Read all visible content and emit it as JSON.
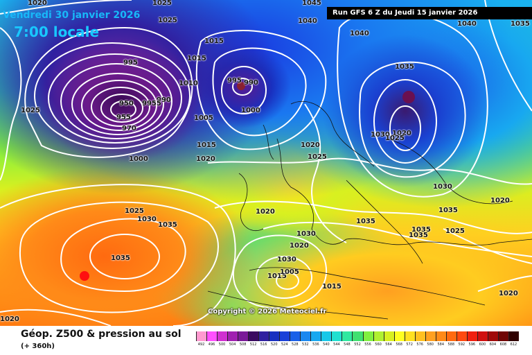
{
  "header": {
    "date_line": "Vendredi 30 janvier 2026",
    "time_line": "7:00 locale",
    "run_info": "Run GFS 6 Z du Jeudi 15 janvier 2026"
  },
  "copyright": "Copyright © 2026 Meteociel.fr",
  "footer": {
    "product_title": "Géop. Z500 & pression au sol",
    "lead_time": "(+ 360h)"
  },
  "isobar_labels": [
    {
      "id": "l1020a",
      "text": "1020"
    },
    {
      "id": "l1025a",
      "text": "1025"
    },
    {
      "id": "l1025b",
      "text": "1025"
    },
    {
      "id": "l1045",
      "text": "1045"
    },
    {
      "id": "l1040a",
      "text": "1040"
    },
    {
      "id": "l1040b",
      "text": "1040"
    },
    {
      "id": "l1040c",
      "text": "1040"
    },
    {
      "id": "l1035a",
      "text": "1035"
    },
    {
      "id": "l1015a",
      "text": "1015"
    },
    {
      "id": "l1015b",
      "text": "1015"
    },
    {
      "id": "l1010",
      "text": "1010"
    },
    {
      "id": "l995a",
      "text": "995"
    },
    {
      "id": "l995b",
      "text": "995"
    },
    {
      "id": "l990a",
      "text": "990"
    },
    {
      "id": "l990b",
      "text": "990"
    },
    {
      "id": "l950",
      "text": "950"
    },
    {
      "id": "l955",
      "text": "955"
    },
    {
      "id": "l970",
      "text": "970"
    },
    {
      "id": "l9955",
      "text": "9955"
    },
    {
      "id": "l1000a",
      "text": "1000"
    },
    {
      "id": "l1000b",
      "text": "1000"
    },
    {
      "id": "l1005a",
      "text": "1005"
    },
    {
      "id": "l1025c",
      "text": "1025"
    },
    {
      "id": "l1015c",
      "text": "1015"
    },
    {
      "id": "l1020b",
      "text": "1020"
    },
    {
      "id": "l1020c",
      "text": "1020"
    },
    {
      "id": "l1025d",
      "text": "1025"
    },
    {
      "id": "l1035b",
      "text": "1035"
    },
    {
      "id": "l1030a",
      "text": "1030"
    },
    {
      "id": "l1020d",
      "text": "1020"
    },
    {
      "id": "l1030b",
      "text": "1030"
    },
    {
      "id": "l1025e",
      "text": "1025"
    },
    {
      "id": "l1030c",
      "text": "1030"
    },
    {
      "id": "l1035c",
      "text": "1035"
    },
    {
      "id": "l1035d",
      "text": "1035"
    },
    {
      "id": "l1025f",
      "text": "1025"
    },
    {
      "id": "l1020e",
      "text": "1020"
    },
    {
      "id": "l1015d",
      "text": "1015"
    },
    {
      "id": "l1025g",
      "text": "1025"
    },
    {
      "id": "l1030d",
      "text": "1030"
    },
    {
      "id": "l1035e",
      "text": "1035"
    },
    {
      "id": "l1035f",
      "text": "1035"
    },
    {
      "id": "l1035g",
      "text": "1035"
    },
    {
      "id": "l1030e",
      "text": "1030"
    },
    {
      "id": "l1005b",
      "text": "1005"
    },
    {
      "id": "l1015e",
      "text": "1015"
    },
    {
      "id": "l1020f",
      "text": "1020"
    },
    {
      "id": "l1020g",
      "text": "1020"
    },
    {
      "id": "l1020h",
      "text": "1020"
    },
    {
      "id": "l1035h",
      "text": "1035"
    },
    {
      "id": "l1020i",
      "text": "1020"
    }
  ],
  "color_scale": {
    "values": [
      "492",
      "496",
      "500",
      "504",
      "508",
      "512",
      "516",
      "520",
      "524",
      "528",
      "532",
      "536",
      "540",
      "544",
      "548",
      "552",
      "556",
      "560",
      "564",
      "568",
      "572",
      "576",
      "580",
      "584",
      "588",
      "592",
      "596",
      "600",
      "604",
      "608",
      "612"
    ],
    "colors": [
      "#ff9ad0",
      "#ff50ff",
      "#d030d0",
      "#a020b0",
      "#7a1a98",
      "#3a0a60",
      "#3020a0",
      "#1830c0",
      "#1a40d8",
      "#1a60e8",
      "#1a88f0",
      "#18a8f0",
      "#18c8e8",
      "#20e0d0",
      "#30e8a0",
      "#40e070",
      "#80f040",
      "#b0f030",
      "#d8f020",
      "#ffff20",
      "#ffe020",
      "#ffc020",
      "#ffa020",
      "#ff8a18",
      "#ff6a10",
      "#ff4a10",
      "#f02010",
      "#d01010",
      "#a00a0a",
      "#700505",
      "#300000"
    ]
  }
}
